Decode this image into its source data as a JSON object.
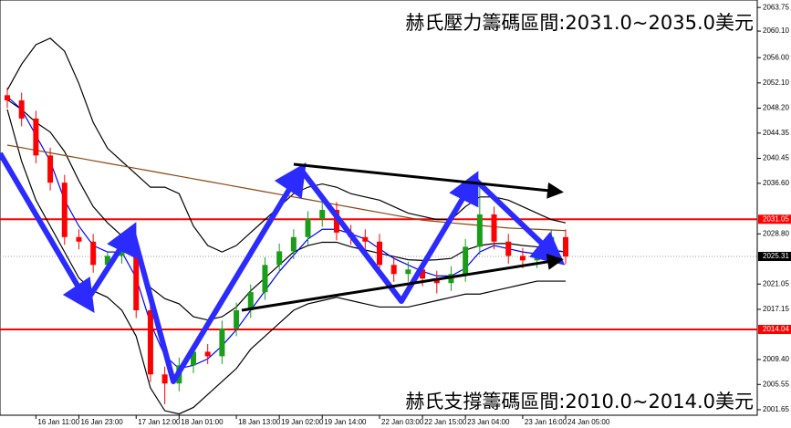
{
  "chart_data": {
    "type": "candlestick",
    "categories": [
      null,
      null,
      "16 Jan 11:00",
      null,
      null,
      "16 Jan 23:00",
      null,
      null,
      null,
      "17 Jan 12:00",
      null,
      null,
      "18 Jan 01:00",
      null,
      null,
      null,
      "18 Jan 13:00",
      null,
      null,
      "19 Jan 02:00",
      null,
      null,
      "19 Jan 14:00",
      null,
      null,
      null,
      "22 Jan 03:00",
      null,
      null,
      "22 Jan 15:00",
      null,
      null,
      "23 Jan 04:00",
      null,
      null,
      null,
      "23 Jan 16:00",
      null,
      null,
      "24 Jan 05:00"
    ],
    "open": [
      2050.2,
      2049.4,
      2046.6,
      2040.9,
      2036.7,
      2028.3,
      2027.6,
      2024.0,
      2025.4,
      2026.1,
      2017.0,
      2007.1,
      2005.7,
      2008.5,
      2010.6,
      2009.9,
      2014.2,
      2017.0,
      2019.8,
      2024.0,
      2026.1,
      2028.3,
      2031.1,
      2032.5,
      2029.0,
      2028.3,
      2027.6,
      2024.0,
      2022.6,
      2023.3,
      2021.9,
      2021.2,
      2022.6,
      2026.8,
      2031.8,
      2027.6,
      2025.4,
      2024.7,
      2025.4,
      2028.3
    ],
    "high": [
      2051.4,
      2050.6,
      2047.8,
      2042.1,
      2037.9,
      2029.5,
      2028.8,
      2025.9,
      2026.6,
      2027.3,
      2018.2,
      2008.3,
      2009.7,
      2011.8,
      2011.8,
      2015.4,
      2018.2,
      2021.0,
      2025.2,
      2027.3,
      2029.5,
      2032.3,
      2035.0,
      2033.7,
      2030.2,
      2029.5,
      2028.8,
      2025.2,
      2024.5,
      2024.5,
      2023.1,
      2023.8,
      2028.0,
      2036.5,
      2033.0,
      2028.8,
      2026.6,
      2026.6,
      2029.5,
      2029.5
    ],
    "low": [
      2048.2,
      2045.4,
      2039.7,
      2035.5,
      2027.1,
      2026.4,
      2022.8,
      2022.8,
      2024.2,
      2015.8,
      2005.9,
      2002.5,
      2004.5,
      2007.3,
      2008.7,
      2008.7,
      2013.0,
      2015.8,
      2018.6,
      2022.8,
      2024.9,
      2027.1,
      2029.9,
      2027.8,
      2027.1,
      2026.4,
      2022.8,
      2021.4,
      2021.4,
      2020.7,
      2019.6,
      2020.0,
      2021.4,
      2025.6,
      2026.4,
      2024.2,
      2023.5,
      2023.5,
      2024.2,
      2024.1
    ],
    "close": [
      2049.4,
      2046.6,
      2040.9,
      2036.7,
      2028.3,
      2027.6,
      2024.0,
      2025.4,
      2026.1,
      2017.0,
      2007.1,
      2005.7,
      2008.5,
      2010.6,
      2009.9,
      2014.2,
      2017.0,
      2019.8,
      2024.0,
      2026.1,
      2028.3,
      2031.1,
      2032.5,
      2029.0,
      2028.3,
      2027.6,
      2024.0,
      2022.6,
      2023.3,
      2021.9,
      2021.2,
      2022.6,
      2026.8,
      2031.8,
      2027.6,
      2025.4,
      2024.7,
      2025.4,
      2028.3,
      2025.3
    ],
    "up_color": "#1a9e1a",
    "down_color": "#ff0000",
    "overlays": [
      {
        "color": "#000000",
        "values": [
          2051,
          2055,
          2058,
          2059,
          2057,
          2052,
          2046,
          2042,
          2040,
          2038,
          2036,
          2036,
          2035,
          2030,
          2027,
          2026,
          2027,
          2029,
          2031,
          2033,
          2035,
          2036,
          2036.5,
          2036,
          2035,
          2034.5,
          2034,
          2033,
          2032,
          2031.5,
          2031,
          2031,
          2033,
          2034.5,
          2034.5,
          2034,
          2033,
          2032,
          2031,
          2030.5
        ]
      },
      {
        "color": "#000000",
        "values": [
          2048,
          2040,
          2034,
          2030,
          2026,
          2022,
          2020,
          2019,
          2017,
          2013,
          2005,
          2001.5,
          2001,
          2002,
          2004,
          2006,
          2008,
          2011,
          2013,
          2015,
          2017,
          2018,
          2018.5,
          2019,
          2018.5,
          2018,
          2017.5,
          2017.5,
          2017.5,
          2018,
          2018.5,
          2019,
          2019.5,
          2019.5,
          2020,
          2020.5,
          2021,
          2021.5,
          2021.5,
          2021.5
        ]
      },
      {
        "color": "#000000",
        "values": [
          2049.5,
          2048,
          2046,
          2044.5,
          2041.5,
          2037,
          2033,
          2030.5,
          2028.5,
          2025.5,
          2020.5,
          2018.8,
          2018,
          2016,
          2015.5,
          2016,
          2017.5,
          2020,
          2022,
          2024,
          2026,
          2027,
          2027.5,
          2027.5,
          2026.8,
          2026.3,
          2025.8,
          2025.3,
          2024.8,
          2024.7,
          2024.8,
          2025,
          2026.3,
          2027,
          2027.3,
          2027.3,
          2027,
          2026.8,
          2026.3,
          2026
        ]
      },
      {
        "color": "#0000ff",
        "values": [
          2050,
          2048,
          2044,
          2040,
          2034,
          2030,
          2027,
          2026,
          2026,
          2022,
          2015,
          2010,
          2008,
          2008.5,
          2009.5,
          2011.5,
          2014,
          2017,
          2020,
          2023,
          2025.5,
          2028,
          2029.5,
          2029.5,
          2028.8,
          2028,
          2026.5,
          2025,
          2024,
          2023,
          2022.3,
          2022.3,
          2023.5,
          2026,
          2027,
          2026.5,
          2026,
          2025.7,
          2026.3,
          2026
        ]
      },
      {
        "color": "#8b4513",
        "values": [
          2042.5,
          2042.1,
          2041.7,
          2041.3,
          2040.9,
          2040.5,
          2040.1,
          2039.7,
          2039.3,
          2038.9,
          2038.5,
          2038.1,
          2037.7,
          2037.3,
          2036.9,
          2036.5,
          2036.1,
          2035.7,
          2035.3,
          2034.9,
          2034.5,
          2034.1,
          2033.7,
          2033.3,
          2032.9,
          2032.5,
          2032.1,
          2031.7,
          2031.3,
          2030.9,
          2030.7,
          2030.5,
          2030.3,
          2030.1,
          2029.9,
          2029.7,
          2029.6,
          2029.5,
          2029.4,
          2029.3
        ]
      }
    ],
    "levels": [
      {
        "value": 2031.05,
        "color": "#ff0000"
      },
      {
        "value": 2014.04,
        "color": "#ff0000"
      }
    ],
    "current_price": {
      "value": 2025.31,
      "color": "#000000"
    },
    "ylim": [
      2000.8,
      2064.9
    ],
    "yticks": [
      2063.75,
      {
        "value": 2060.1,
        "label": "2060.10"
      },
      {
        "value": 2056,
        "label": "2056.00"
      },
      {
        "value": 2052.1,
        "label": "2052.10"
      },
      {
        "value": 2048.2,
        "label": "2048.20"
      },
      2044.35,
      2040.45,
      {
        "value": 2036.6,
        "label": "2036.60"
      },
      {
        "value": 2028.8,
        "label": "2028.80"
      },
      2021.05,
      2017.15,
      {
        "value": 2009.4,
        "label": "2009.40"
      },
      2005.55,
      2001.65
    ],
    "annotations": [
      "赫氏壓力籌碼區間:2031.0~2035.0美元",
      "赫氏支撐籌碼區間:2010.0~2014.0美元"
    ]
  }
}
